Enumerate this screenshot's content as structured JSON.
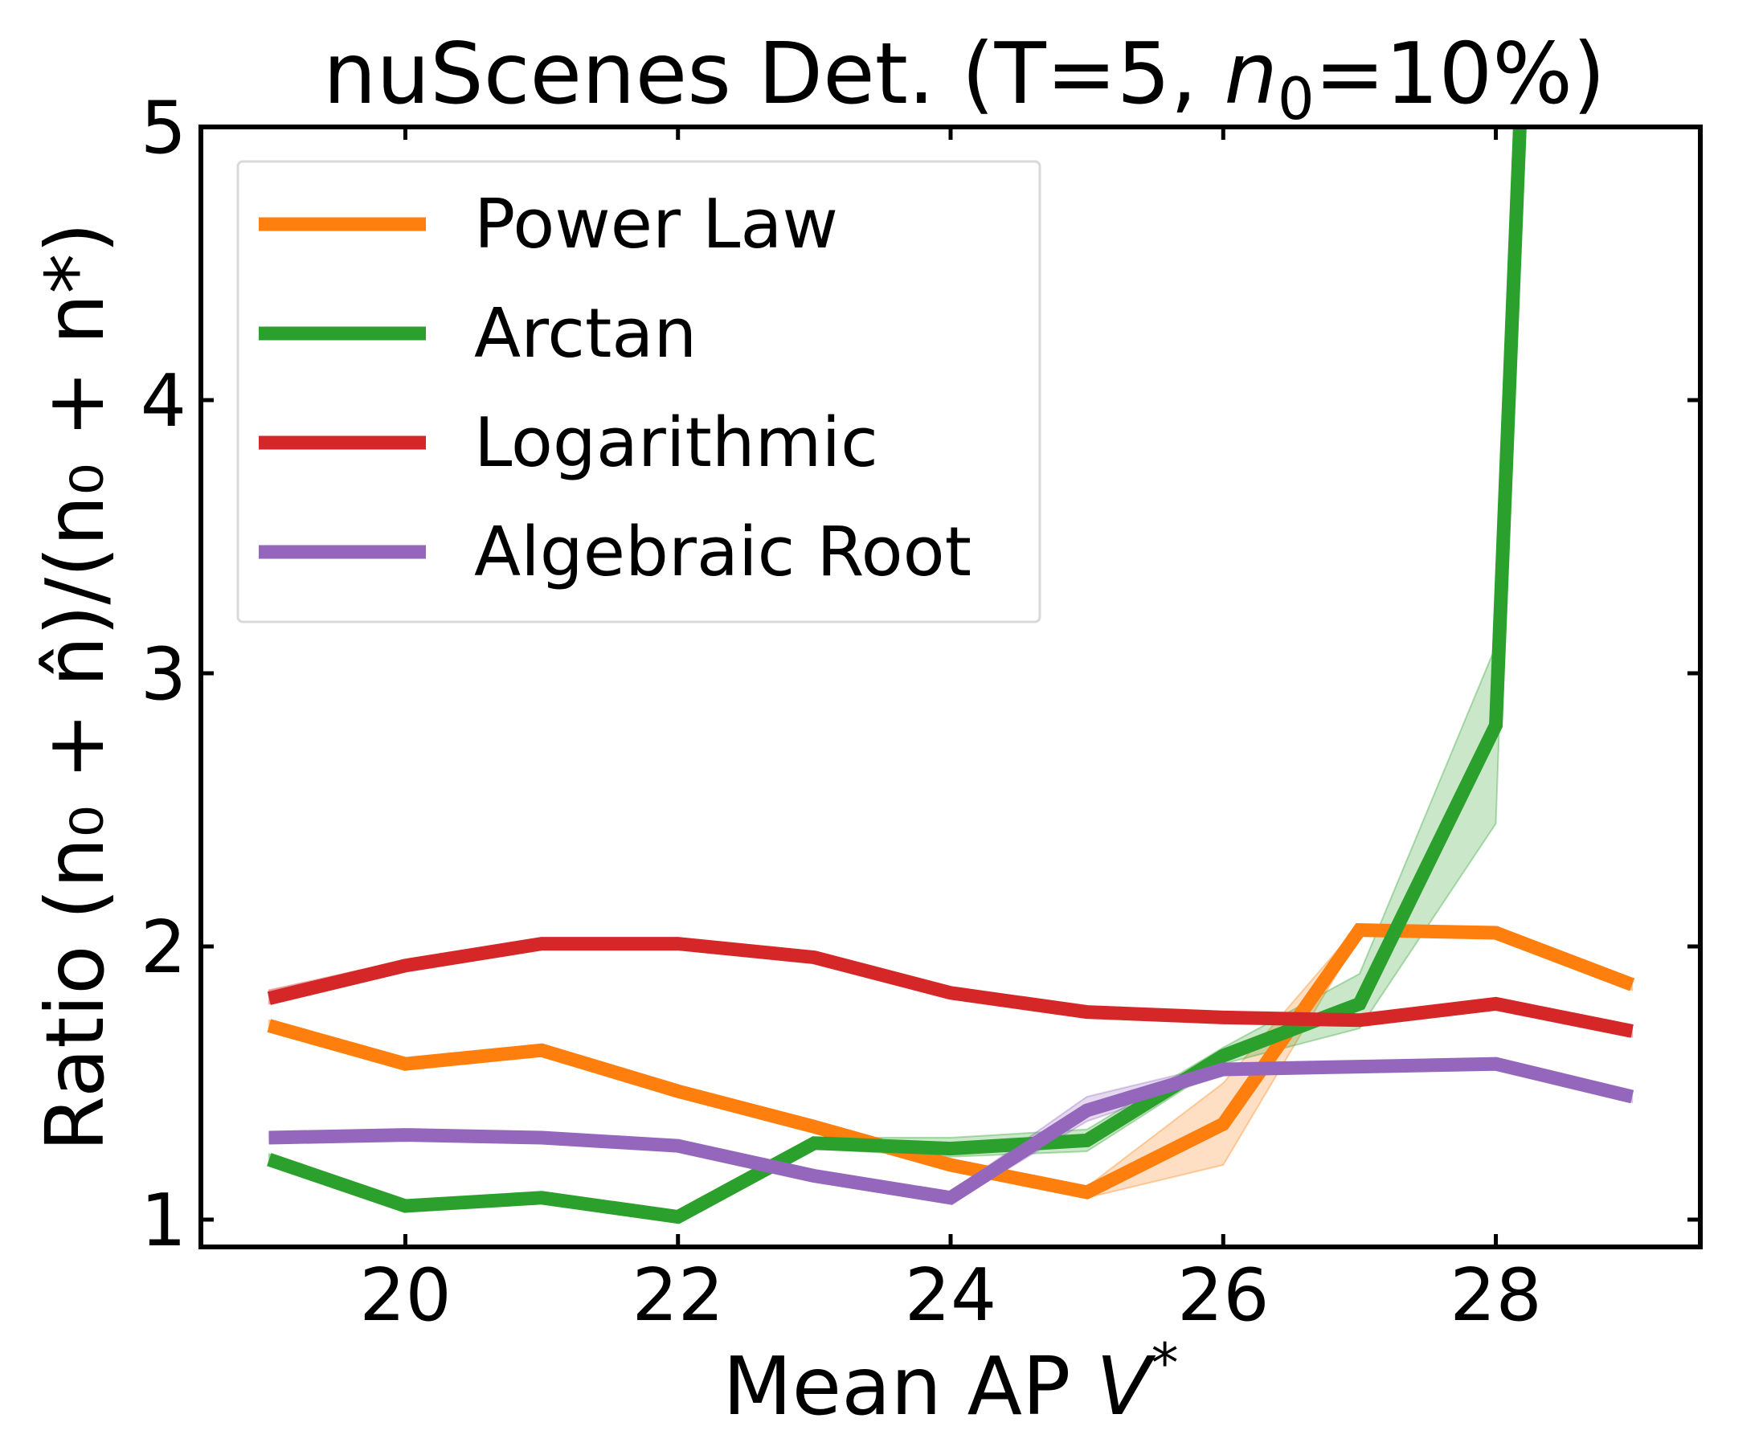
{
  "chart_data": {
    "type": "line",
    "title": "nuScenes Det. (T=5, n₀=10%)",
    "title_parts": {
      "prefix": "nuScenes Det. (T=5, ",
      "var": "n",
      "sub": "0",
      "suffix": "=10%)"
    },
    "xlabel": "Mean AP V*",
    "xlabel_parts": {
      "text": "Mean AP ",
      "var": "V",
      "sup": "*"
    },
    "ylabel": "Ratio (n₀ + n̂)/(n₀ + n*)",
    "xlim": [
      18.5,
      29.5
    ],
    "ylim": [
      0.9,
      5.0
    ],
    "xticks": [
      20,
      22,
      24,
      26,
      28
    ],
    "yticks": [
      1,
      2,
      3,
      4,
      5
    ],
    "grid": false,
    "legend_position": "upper-left",
    "series": [
      {
        "name": "Power Law",
        "color": "#ff7f0e",
        "x": [
          19,
          20,
          21,
          22,
          23,
          24,
          25,
          26,
          27,
          28,
          29
        ],
        "y": [
          1.71,
          1.57,
          1.62,
          1.47,
          1.34,
          1.2,
          1.1,
          1.35,
          2.06,
          2.05,
          1.86
        ],
        "band_low": [
          1.69,
          1.55,
          1.6,
          1.45,
          1.32,
          1.18,
          1.08,
          1.2,
          2.04,
          2.03,
          1.84
        ],
        "band_high": [
          1.73,
          1.59,
          1.64,
          1.49,
          1.36,
          1.22,
          1.12,
          1.5,
          2.08,
          2.07,
          1.88
        ]
      },
      {
        "name": "Arctan",
        "color": "#2ca02c",
        "x": [
          19,
          20,
          21,
          22,
          23,
          24,
          25,
          26,
          27,
          28,
          28.2
        ],
        "y": [
          1.22,
          1.05,
          1.08,
          1.01,
          1.28,
          1.26,
          1.29,
          1.6,
          1.79,
          2.81,
          5.3
        ],
        "band_low": [
          1.2,
          1.03,
          1.06,
          0.99,
          1.26,
          1.23,
          1.25,
          1.57,
          1.7,
          2.45,
          5.3
        ],
        "band_high": [
          1.24,
          1.07,
          1.1,
          1.03,
          1.3,
          1.3,
          1.33,
          1.63,
          1.9,
          3.1,
          5.3
        ]
      },
      {
        "name": "Logarithmic",
        "color": "#d62728",
        "x": [
          19,
          20,
          21,
          22,
          23,
          24,
          25,
          26,
          27,
          28,
          29
        ],
        "y": [
          1.81,
          1.93,
          2.01,
          2.01,
          1.96,
          1.83,
          1.76,
          1.74,
          1.73,
          1.79,
          1.69
        ],
        "band_low": [
          1.79,
          1.91,
          1.99,
          1.99,
          1.94,
          1.81,
          1.74,
          1.72,
          1.71,
          1.77,
          1.67
        ],
        "band_high": [
          1.84,
          1.95,
          2.03,
          2.03,
          1.98,
          1.85,
          1.78,
          1.76,
          1.75,
          1.81,
          1.71
        ]
      },
      {
        "name": "Algebraic Root",
        "color": "#9467bd",
        "x": [
          19,
          20,
          21,
          22,
          23,
          24,
          25,
          26,
          27,
          28,
          29
        ],
        "y": [
          1.3,
          1.31,
          1.3,
          1.27,
          1.16,
          1.08,
          1.4,
          1.55,
          1.56,
          1.57,
          1.45
        ],
        "band_low": [
          1.28,
          1.29,
          1.28,
          1.25,
          1.14,
          1.06,
          1.36,
          1.53,
          1.54,
          1.55,
          1.43
        ],
        "band_high": [
          1.32,
          1.33,
          1.32,
          1.29,
          1.18,
          1.1,
          1.45,
          1.57,
          1.58,
          1.59,
          1.47
        ]
      }
    ]
  }
}
